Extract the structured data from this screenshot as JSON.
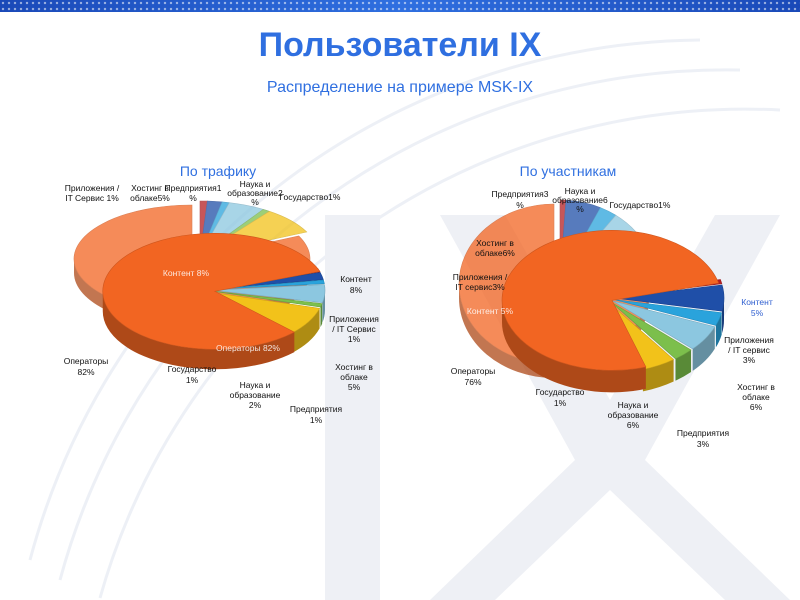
{
  "header": {
    "title": "Пользователи IX",
    "subtitle": "Распределение на примере MSK-IX"
  },
  "colors": {
    "accent": "#2f6fe0",
    "operators": "#f26522",
    "government": "#b51e22",
    "science": "#1f4fa8",
    "enterprises": "#2aa3dc",
    "hosting": "#8cc7e0",
    "apps": "#7cbf4c",
    "content": "#f2c21a"
  },
  "chart_data": [
    {
      "type": "pie",
      "title": "По трафику",
      "unit": "%",
      "slices": [
        {
          "label": "Операторы",
          "value": 82,
          "color": "#f26522"
        },
        {
          "label": "Государство",
          "value": 1,
          "color": "#b51e22"
        },
        {
          "label": "Наука и образование",
          "value": 2,
          "color": "#1f4fa8"
        },
        {
          "label": "Предприятия",
          "value": 1,
          "color": "#2aa3dc"
        },
        {
          "label": "Хостинг в облаке",
          "value": 5,
          "color": "#8cc7e0"
        },
        {
          "label": "Приложения / IT Сервис",
          "value": 1,
          "color": "#7cbf4c"
        },
        {
          "label": "Контент",
          "value": 8,
          "color": "#f2c21a"
        }
      ]
    },
    {
      "type": "pie",
      "title": "По участникам",
      "unit": "%",
      "slices": [
        {
          "label": "Операторы",
          "value": 76,
          "color": "#f26522"
        },
        {
          "label": "Государство",
          "value": 1,
          "color": "#b51e22"
        },
        {
          "label": "Наука и образование",
          "value": 6,
          "color": "#1f4fa8"
        },
        {
          "label": "Предприятия",
          "value": 3,
          "color": "#2aa3dc"
        },
        {
          "label": "Хостинг в облаке",
          "value": 6,
          "color": "#8cc7e0"
        },
        {
          "label": "Приложения / IT сервис",
          "value": 3,
          "color": "#7cbf4c"
        },
        {
          "label": "Контент",
          "value": 5,
          "color": "#f2c21a"
        }
      ]
    }
  ],
  "labels": {
    "traffic": {
      "ghost": {
        "apps": [
          "Приложения /",
          "IT Сервис 1%"
        ],
        "hosting": [
          "Хостинг в",
          "облаке5%"
        ],
        "enterprises": [
          "Предприятия1",
          "%"
        ],
        "science": [
          "Наука и",
          "образование2",
          "%"
        ],
        "government": [
          "Государство1%"
        ],
        "content": [
          "Контент 8%"
        ],
        "operators": [
          "Операторы 82%"
        ]
      },
      "main": {
        "content": [
          "Контент",
          "8%"
        ],
        "apps": [
          "Приложения",
          "/ IT Сервис",
          "1%"
        ],
        "hosting": [
          "Хостинг в",
          "облаке",
          "5%"
        ],
        "enterprises": [
          "Предприятия",
          "1%"
        ],
        "science": [
          "Наука и",
          "образование",
          "2%"
        ],
        "government": [
          "Государство",
          "1%"
        ],
        "operators": [
          "Операторы",
          "82%"
        ]
      }
    },
    "members": {
      "ghost": {
        "enterprises": [
          "Предприятия3",
          "%"
        ],
        "science": [
          "Наука и",
          "образование6",
          "%"
        ],
        "government": [
          "Государство1%"
        ],
        "hosting": [
          "Хостинг в",
          "облаке6%"
        ],
        "apps": [
          "Приложения /",
          "IT сервис3%"
        ],
        "content": [
          "Контент 5%"
        ]
      },
      "main": {
        "content": [
          "Контент",
          "5%"
        ],
        "apps": [
          "Приложения",
          "/ IT сервис",
          "3%"
        ],
        "hosting": [
          "Хостинг в",
          "облаке",
          "6%"
        ],
        "enterprises": [
          "Предприятия",
          "3%"
        ],
        "science": [
          "Наука и",
          "образование",
          "6%"
        ],
        "government": [
          "Государство",
          "1%"
        ],
        "operators": [
          "Операторы",
          "76%"
        ]
      }
    }
  }
}
